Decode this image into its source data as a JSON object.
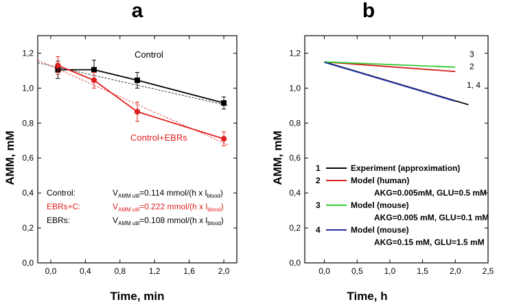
{
  "colors": {
    "control": "#000000",
    "ebrs": "#e02020",
    "experiment": "#000000",
    "model_human": "#d42020",
    "model_mouse_low": "#33cc33",
    "model_mouse_high": "#1f2fa8"
  },
  "chart_data": [
    {
      "id": "a",
      "type": "scatter",
      "panel_label": "a",
      "xlabel": "Time,  min",
      "ylabel": "AMM,  mM",
      "xlim": [
        -0.15,
        2.15
      ],
      "ylim": [
        0.0,
        1.3
      ],
      "xticks": [
        0.0,
        0.4,
        0.8,
        1.2,
        1.6,
        2.0
      ],
      "xtick_labels": [
        "0,0",
        "0,4",
        "0,8",
        "1,2",
        "1,6",
        "2,0"
      ],
      "yticks": [
        0.0,
        0.2,
        0.4,
        0.6,
        0.8,
        1.0,
        1.2
      ],
      "ytick_labels": [
        "0,0",
        "0,2",
        "0,4",
        "0,6",
        "0,8",
        "1,0",
        "1,2"
      ],
      "series": [
        {
          "name": "Control",
          "color": "#000000",
          "marker": "square",
          "x": [
            0.083,
            0.5,
            1.0,
            2.0
          ],
          "y": [
            1.105,
            1.105,
            1.045,
            0.915
          ],
          "yerr": [
            0.05,
            0.055,
            0.045,
            0.035
          ],
          "fit": {
            "x": [
              -0.15,
              2.05
            ],
            "y": [
              1.145,
              0.9
            ]
          }
        },
        {
          "name": "Control+EBRs",
          "color": "#e02020",
          "marker": "circle",
          "x": [
            0.083,
            0.5,
            1.0,
            2.0
          ],
          "y": [
            1.13,
            1.045,
            0.865,
            0.71
          ],
          "yerr": [
            0.05,
            0.045,
            0.055,
            0.04
          ],
          "fit": {
            "x": [
              -0.15,
              2.05
            ],
            "y": [
              1.16,
              0.675
            ]
          }
        }
      ],
      "series_labels": {
        "control": "Control",
        "ebrs": "Control+EBRs"
      },
      "annotations": [
        {
          "key": "control",
          "label": "Control:",
          "v": "V",
          "sub1": "AMM util",
          "eq": "=0.114 mmol/(h x l",
          "sub2": "blood",
          "end": ")"
        },
        {
          "key": "ebrs",
          "label": "EBRs+C:",
          "v": "V",
          "sub1": "AMM util",
          "eq": "=0.222 mmol/(h x l",
          "sub2": "blood",
          "end": ")"
        },
        {
          "key": "ebrs_only",
          "label": "EBRs:",
          "v": "V",
          "sub1": "AMM util",
          "eq": "=0.108 mmol/(h x l",
          "sub2": "blood",
          "end": ")"
        }
      ]
    },
    {
      "id": "b",
      "type": "line",
      "panel_label": "b",
      "xlabel": "Time,  h",
      "ylabel": "AMM,  mM",
      "xlim": [
        -0.3,
        2.5
      ],
      "ylim": [
        0.0,
        1.3
      ],
      "xticks": [
        0.0,
        0.5,
        1.0,
        1.5,
        2.0,
        2.5
      ],
      "xtick_labels": [
        "0,0",
        "0,5",
        "1,0",
        "1,5",
        "2,0",
        "2,5"
      ],
      "yticks": [
        0.0,
        0.2,
        0.4,
        0.6,
        0.8,
        1.0,
        1.2
      ],
      "ytick_labels": [
        "0,0",
        "0,2",
        "0,4",
        "0,6",
        "0,8",
        "1,0",
        "1,2"
      ],
      "series": [
        {
          "id": "1",
          "name": "Experiment (approximation)",
          "color": "#000000",
          "x": [
            0.0,
            2.2
          ],
          "y": [
            1.15,
            0.905
          ]
        },
        {
          "id": "2",
          "name": "Model (human)",
          "detail": "AKG=0.005mM, GLU=0.5 mM",
          "color": "#d42020",
          "x": [
            0.0,
            2.0
          ],
          "y": [
            1.15,
            1.095
          ]
        },
        {
          "id": "3",
          "name": "Model (mouse)",
          "detail": "AKG=0.005 mM, GLU=0.1 mM",
          "color": "#33cc33",
          "x": [
            0.0,
            2.0
          ],
          "y": [
            1.15,
            1.12
          ]
        },
        {
          "id": "4",
          "name": "Model (mouse)",
          "detail": "AKG=0.15 mM, GLU=1.5 mM",
          "color": "#1f2fa8",
          "x": [
            0.0,
            2.0
          ],
          "y": [
            1.148,
            0.925
          ]
        }
      ],
      "line_labels": {
        "l3": "3",
        "l2": "2",
        "l14": "1, 4"
      }
    }
  ]
}
